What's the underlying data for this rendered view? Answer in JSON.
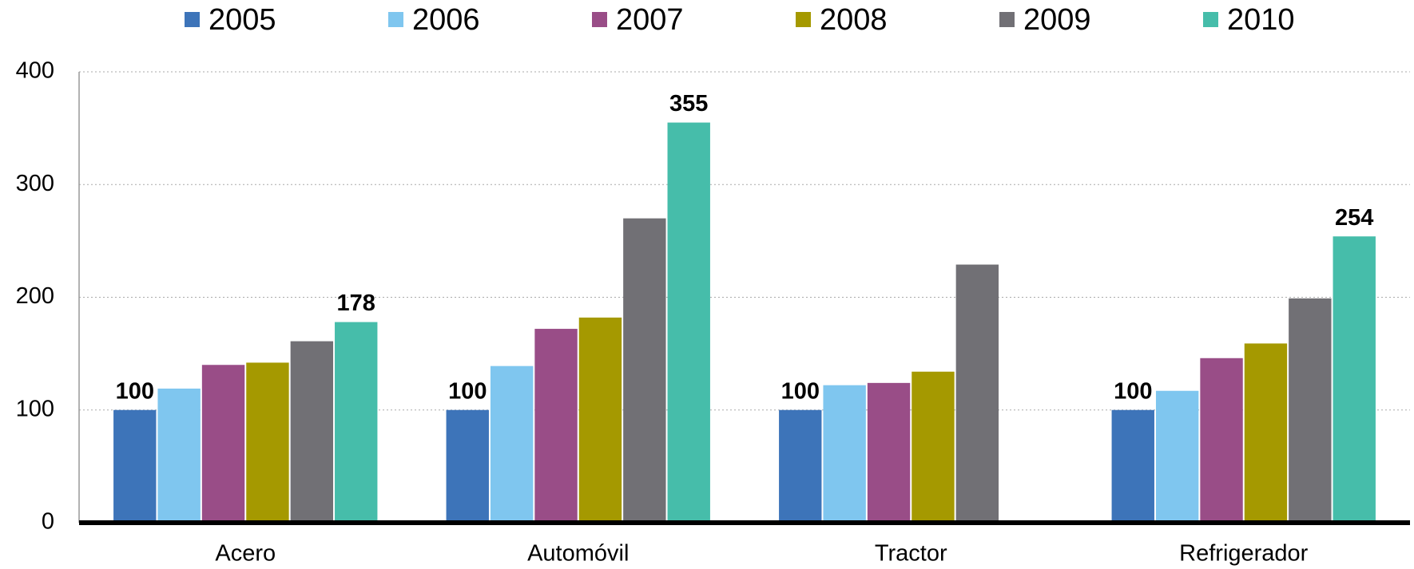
{
  "chart_data": {
    "type": "bar",
    "categories": [
      "Acero",
      "Automóvil",
      "Tractor",
      "Refrigerador"
    ],
    "series": [
      {
        "name": "2005",
        "color": "#3d74b9",
        "values": [
          100,
          100,
          100,
          100
        ],
        "data_labels": true
      },
      {
        "name": "2006",
        "color": "#7fc6ef",
        "values": [
          119,
          139,
          122,
          117
        ]
      },
      {
        "name": "2007",
        "color": "#994d87",
        "values": [
          140,
          172,
          124,
          146
        ]
      },
      {
        "name": "2008",
        "color": "#a59900",
        "values": [
          142,
          182,
          134,
          159
        ]
      },
      {
        "name": "2009",
        "color": "#717075",
        "values": [
          161,
          270,
          229,
          199
        ]
      },
      {
        "name": "2010",
        "color": "#46bdaa",
        "values": [
          178,
          355,
          null,
          254
        ],
        "data_labels": true
      }
    ],
    "ylim": [
      0,
      400
    ],
    "yticks": [
      0,
      100,
      200,
      300,
      400
    ],
    "grid": true,
    "legend": "top"
  }
}
